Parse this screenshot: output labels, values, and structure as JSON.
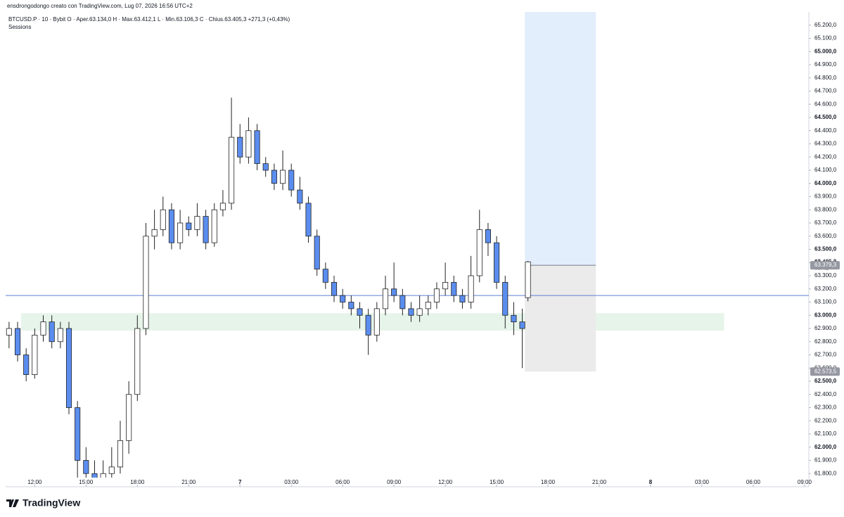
{
  "chart_data": {
    "type": "candlestick",
    "title": "ensdrongodongo creato con TradingView.com, Lug 07, 2026 16:56 UTC+2",
    "legend_text": "BTCUSD.P · 10 · Bybit  O · Aper.63.134,0  H · Max.63.412,1  L · Min.63.106,3  C · Chius.63.405,3  +271,3 (+0,43%)",
    "indicator": "Sessions",
    "brand": "TradingView",
    "up_color": "#ffffff",
    "down_color": "#5b8def",
    "wick_color": "#222222",
    "x": [
      10.5,
      11,
      11.5,
      12,
      12.5,
      13,
      13.5,
      14,
      14.5,
      15,
      15.5,
      16,
      16.5,
      17,
      17.5,
      18,
      18.5,
      19,
      19.5,
      20,
      20.5,
      21,
      21.5,
      22,
      22.5,
      23,
      23.5,
      24,
      24.5,
      25,
      25.5,
      26,
      26.5,
      27,
      27.5,
      28,
      28.5,
      29,
      29.5,
      30,
      30.5,
      31,
      31.5,
      32,
      32.5,
      33,
      33.5,
      34,
      34.5,
      35,
      35.5,
      36,
      36.5,
      37,
      37.5,
      38,
      38.5,
      39,
      39.5,
      40,
      40.5,
      40.83
    ],
    "open": [
      62850,
      62900,
      62700,
      62550,
      62850,
      62950,
      62800,
      62900,
      62300,
      61900,
      61800,
      61750,
      61800,
      61850,
      62050,
      62400,
      62900,
      63600,
      63650,
      63800,
      63550,
      63700,
      63650,
      63750,
      63550,
      63800,
      63850,
      64350,
      64200,
      64400,
      64150,
      64100,
      64000,
      64100,
      63950,
      63850,
      63600,
      63350,
      63250,
      63150,
      63100,
      63050,
      63000,
      62850,
      63050,
      63200,
      63150,
      63050,
      63000,
      63050,
      63100,
      63200,
      63250,
      63150,
      63100,
      63300,
      63650,
      63550,
      63250,
      63000,
      62950,
      63134
    ],
    "high": [
      62950,
      62950,
      62750,
      62900,
      63000,
      63000,
      62950,
      62950,
      62350,
      62000,
      61900,
      61900,
      62000,
      62200,
      62500,
      63000,
      63700,
      63800,
      63900,
      63850,
      63800,
      63750,
      63850,
      63800,
      63850,
      63950,
      64650,
      64450,
      64500,
      64450,
      64200,
      64150,
      64250,
      64150,
      64050,
      63900,
      63650,
      63400,
      63300,
      63200,
      63150,
      63100,
      63050,
      63100,
      63300,
      63400,
      63200,
      63100,
      63150,
      63150,
      63250,
      63400,
      63300,
      63200,
      63450,
      63800,
      63700,
      63600,
      63300,
      63100,
      63050,
      63412.1
    ],
    "low": [
      62750,
      62650,
      62500,
      62520,
      62800,
      62750,
      62750,
      62250,
      61750,
      61720,
      61700,
      61720,
      61750,
      61800,
      61950,
      62350,
      62850,
      63500,
      63600,
      63500,
      63500,
      63600,
      63600,
      63500,
      63520,
      63750,
      63800,
      64150,
      64150,
      64100,
      64050,
      63950,
      63950,
      63900,
      63800,
      63550,
      63300,
      63200,
      63100,
      63050,
      63000,
      62900,
      62700,
      62800,
      63000,
      63100,
      63000,
      62950,
      62950,
      63000,
      63050,
      63150,
      63100,
      63050,
      63050,
      63250,
      63450,
      63200,
      62900,
      62850,
      62600,
      63106.3
    ],
    "close": [
      62900,
      62700,
      62550,
      62850,
      62950,
      62800,
      62900,
      62300,
      61900,
      61800,
      61750,
      61800,
      61850,
      62050,
      62400,
      62900,
      63600,
      63650,
      63800,
      63550,
      63700,
      63650,
      63750,
      63550,
      63800,
      63850,
      64350,
      64200,
      64400,
      64150,
      64100,
      64000,
      64100,
      63950,
      63850,
      63600,
      63350,
      63250,
      63150,
      63100,
      63050,
      63000,
      62850,
      63050,
      63200,
      63150,
      63050,
      63000,
      63050,
      63100,
      63200,
      63250,
      63150,
      63100,
      63300,
      63650,
      63550,
      63250,
      63000,
      62950,
      62900,
      63405.3
    ],
    "xlim": [
      10.3,
      57.25
    ],
    "xticks": [
      {
        "value": 12,
        "label": "12:00"
      },
      {
        "value": 15,
        "label": "15:00"
      },
      {
        "value": 18,
        "label": "18:00"
      },
      {
        "value": 21,
        "label": "21:00"
      },
      {
        "value": 24,
        "label": "7"
      },
      {
        "value": 27,
        "label": "03:00"
      },
      {
        "value": 30,
        "label": "06:00"
      },
      {
        "value": 33,
        "label": "09:00"
      },
      {
        "value": 36,
        "label": "12:00"
      },
      {
        "value": 39,
        "label": "15:00"
      },
      {
        "value": 42,
        "label": "18:00"
      },
      {
        "value": 45,
        "label": "21:00"
      },
      {
        "value": 48,
        "label": "8"
      },
      {
        "value": 51,
        "label": "03:00"
      },
      {
        "value": 54,
        "label": "06:00"
      },
      {
        "value": 57,
        "label": "09:00"
      }
    ],
    "ylim": [
      61700,
      65300
    ],
    "yticks": [
      {
        "value": 61800,
        "label": "61.800,0"
      },
      {
        "value": 61900,
        "label": "61.900,0"
      },
      {
        "value": 62000,
        "label": "62.000,0"
      },
      {
        "value": 62100,
        "label": "62.100,0"
      },
      {
        "value": 62200,
        "label": "62.200,0"
      },
      {
        "value": 62300,
        "label": "62.300,0"
      },
      {
        "value": 62400,
        "label": "62.400,0"
      },
      {
        "value": 62500,
        "label": "62.500,0"
      },
      {
        "value": 62600,
        "label": "62.600,0"
      },
      {
        "value": 62700,
        "label": "62.700,0"
      },
      {
        "value": 62800,
        "label": "62.800,0"
      },
      {
        "value": 62900,
        "label": "62.900,0"
      },
      {
        "value": 63000,
        "label": "63.000,0"
      },
      {
        "value": 63100,
        "label": "63.100,0"
      },
      {
        "value": 63200,
        "label": "63.200,0"
      },
      {
        "value": 63300,
        "label": "63.300,0"
      },
      {
        "value": 63400,
        "label": "63.400,0"
      },
      {
        "value": 63500,
        "label": "63.500,0"
      },
      {
        "value": 63600,
        "label": "63.600,0"
      },
      {
        "value": 63700,
        "label": "63.700,0"
      },
      {
        "value": 63800,
        "label": "63.800,0"
      },
      {
        "value": 63900,
        "label": "63.900,0"
      },
      {
        "value": 64000,
        "label": "64.000,0"
      },
      {
        "value": 64100,
        "label": "64.100,0"
      },
      {
        "value": 64200,
        "label": "64.200,0"
      },
      {
        "value": 64300,
        "label": "64.300,0"
      },
      {
        "value": 64400,
        "label": "64.400,0"
      },
      {
        "value": 64500,
        "label": "64.500,0"
      },
      {
        "value": 64600,
        "label": "64.600,0"
      },
      {
        "value": 64700,
        "label": "64.700,0"
      },
      {
        "value": 64800,
        "label": "64.800,0"
      },
      {
        "value": 64900,
        "label": "64.900,0"
      },
      {
        "value": 65000,
        "label": "65.000,0"
      },
      {
        "value": 65100,
        "label": "65.100,0"
      },
      {
        "value": 65200,
        "label": "65.200,0"
      }
    ],
    "hline": {
      "value": 63150,
      "color": "#5b7fd6"
    },
    "zone": {
      "low": 62884,
      "high": 63016,
      "x_start": 11.2,
      "x_end": 52.3,
      "color": "#e6f4ea"
    },
    "position": {
      "x_start": 40.65,
      "x_end": 44.8,
      "entry": 63379.3,
      "stop": 62573.5,
      "target": 65300,
      "target_color": "#e3eefc",
      "stop_color": "#ebebeb"
    },
    "price_tags": [
      {
        "value": 63405.3,
        "label": "63.405,3"
      },
      {
        "value": 63379.3,
        "label": "63.379,3"
      },
      {
        "value": 62573.5,
        "label": "62.573,5"
      }
    ],
    "countdown": "03:41"
  }
}
